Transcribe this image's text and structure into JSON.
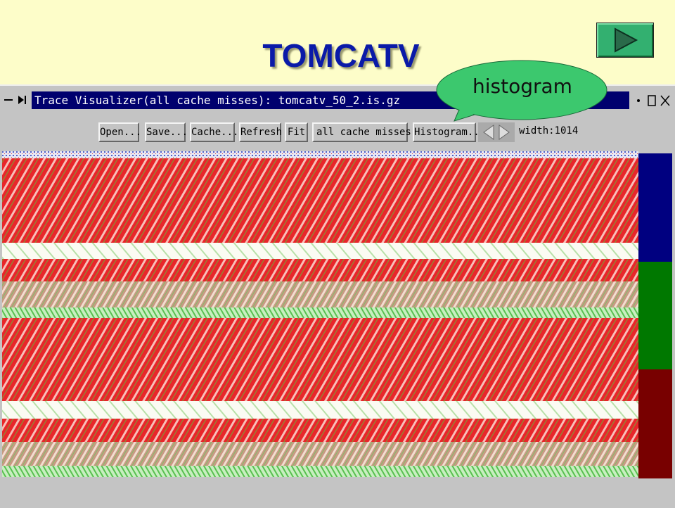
{
  "slide": {
    "title": "TOMCATV",
    "callout": "histogram"
  },
  "window": {
    "title": "Trace Visualizer(all cache misses): tomcatv_50_2.is.gz",
    "buttons": [
      "Open...",
      "Save...",
      "Cache...",
      "Refresh",
      "Fit"
    ],
    "dropdown": "all cache misses",
    "histogram_button": "Histogram...",
    "width_label": "width:1014"
  }
}
